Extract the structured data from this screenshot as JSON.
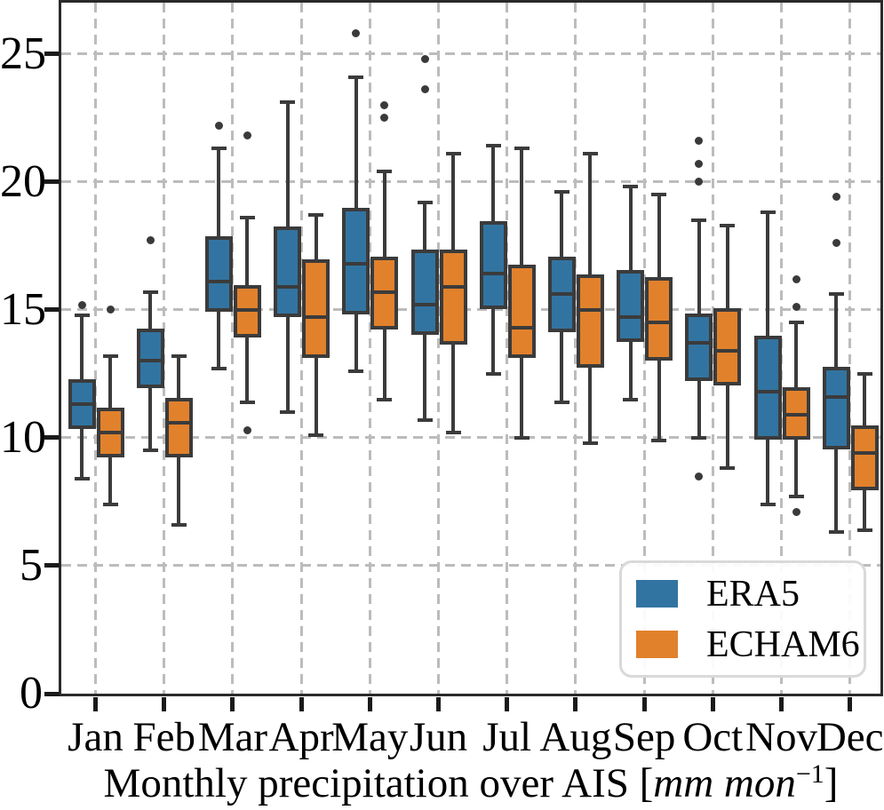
{
  "chart_data": {
    "type": "grouped_boxplot",
    "xlabel_parts": {
      "prefix": "Monthly precipitation over AIS [",
      "unit_italic": "mm mon",
      "superscript": "−1",
      "suffix": "]"
    },
    "ylim": [
      0,
      27
    ],
    "yticks": [
      0,
      5,
      10,
      15,
      20,
      25
    ],
    "grid": "dashed",
    "legend_position": "lower right",
    "categories": [
      "Jan",
      "Feb",
      "Mar",
      "Apr",
      "May",
      "Jun",
      "Jul",
      "Aug",
      "Sep",
      "Oct",
      "Nov",
      "Dec"
    ],
    "colors": {
      "edge": "#3B3B3B",
      "grid": "#bcbcbc",
      "flier": "#3a3a3a"
    },
    "series": [
      {
        "name": "ERA5",
        "color": "#3274A1",
        "boxes": [
          {
            "lo": 8.4,
            "q1": 10.4,
            "med": 11.3,
            "q3": 12.2,
            "hi": 14.8,
            "fliers": [
              15.2
            ]
          },
          {
            "lo": 9.5,
            "q1": 12.0,
            "med": 13.0,
            "q3": 14.2,
            "hi": 15.7,
            "fliers": [
              17.7
            ]
          },
          {
            "lo": 12.7,
            "q1": 15.0,
            "med": 16.1,
            "q3": 17.8,
            "hi": 21.3,
            "fliers": [
              22.2
            ]
          },
          {
            "lo": 11.0,
            "q1": 14.8,
            "med": 15.9,
            "q3": 18.2,
            "hi": 23.1,
            "fliers": []
          },
          {
            "lo": 12.6,
            "q1": 14.9,
            "med": 16.8,
            "q3": 18.9,
            "hi": 24.1,
            "fliers": [
              25.8
            ]
          },
          {
            "lo": 10.7,
            "q1": 14.1,
            "med": 15.2,
            "q3": 17.3,
            "hi": 19.2,
            "fliers": [
              24.8,
              23.6
            ]
          },
          {
            "lo": 12.5,
            "q1": 15.1,
            "med": 16.4,
            "q3": 18.4,
            "hi": 21.4,
            "fliers": []
          },
          {
            "lo": 11.4,
            "q1": 14.2,
            "med": 15.6,
            "q3": 17.0,
            "hi": 19.6,
            "fliers": []
          },
          {
            "lo": 11.5,
            "q1": 13.8,
            "med": 14.7,
            "q3": 16.5,
            "hi": 19.8,
            "fliers": []
          },
          {
            "lo": 10.0,
            "q1": 12.3,
            "med": 13.7,
            "q3": 14.8,
            "hi": 18.5,
            "fliers": [
              21.6,
              20.7,
              20.0,
              8.5
            ]
          },
          {
            "lo": 7.4,
            "q1": 10.0,
            "med": 11.8,
            "q3": 13.9,
            "hi": 18.8,
            "fliers": []
          },
          {
            "lo": 6.3,
            "q1": 9.6,
            "med": 11.6,
            "q3": 12.7,
            "hi": 15.6,
            "fliers": [
              19.4,
              17.6
            ]
          }
        ]
      },
      {
        "name": "ECHAM6",
        "color": "#E1812C",
        "boxes": [
          {
            "lo": 7.4,
            "q1": 9.3,
            "med": 10.2,
            "q3": 11.1,
            "hi": 13.2,
            "fliers": [
              15.0
            ]
          },
          {
            "lo": 6.6,
            "q1": 9.3,
            "med": 10.6,
            "q3": 11.5,
            "hi": 13.2,
            "fliers": []
          },
          {
            "lo": 11.4,
            "q1": 14.0,
            "med": 15.0,
            "q3": 15.9,
            "hi": 18.6,
            "fliers": [
              21.8,
              10.3
            ]
          },
          {
            "lo": 10.1,
            "q1": 13.2,
            "med": 14.7,
            "q3": 16.9,
            "hi": 18.7,
            "fliers": []
          },
          {
            "lo": 11.5,
            "q1": 14.3,
            "med": 15.7,
            "q3": 17.0,
            "hi": 20.4,
            "fliers": [
              23.0,
              22.5
            ]
          },
          {
            "lo": 10.2,
            "q1": 13.7,
            "med": 15.9,
            "q3": 17.3,
            "hi": 21.1,
            "fliers": []
          },
          {
            "lo": 10.0,
            "q1": 13.2,
            "med": 14.3,
            "q3": 16.7,
            "hi": 21.3,
            "fliers": []
          },
          {
            "lo": 9.8,
            "q1": 12.8,
            "med": 15.0,
            "q3": 16.3,
            "hi": 21.1,
            "fliers": []
          },
          {
            "lo": 9.9,
            "q1": 13.1,
            "med": 14.5,
            "q3": 16.2,
            "hi": 19.5,
            "fliers": []
          },
          {
            "lo": 8.8,
            "q1": 12.1,
            "med": 13.4,
            "q3": 15.0,
            "hi": 18.3,
            "fliers": []
          },
          {
            "lo": 7.7,
            "q1": 10.0,
            "med": 10.9,
            "q3": 11.9,
            "hi": 14.5,
            "fliers": [
              16.2,
              15.1,
              7.1
            ]
          },
          {
            "lo": 6.4,
            "q1": 8.0,
            "med": 9.4,
            "q3": 10.4,
            "hi": 12.5,
            "fliers": []
          }
        ]
      }
    ],
    "legend_entries": [
      "ERA5",
      "ECHAM6"
    ]
  }
}
